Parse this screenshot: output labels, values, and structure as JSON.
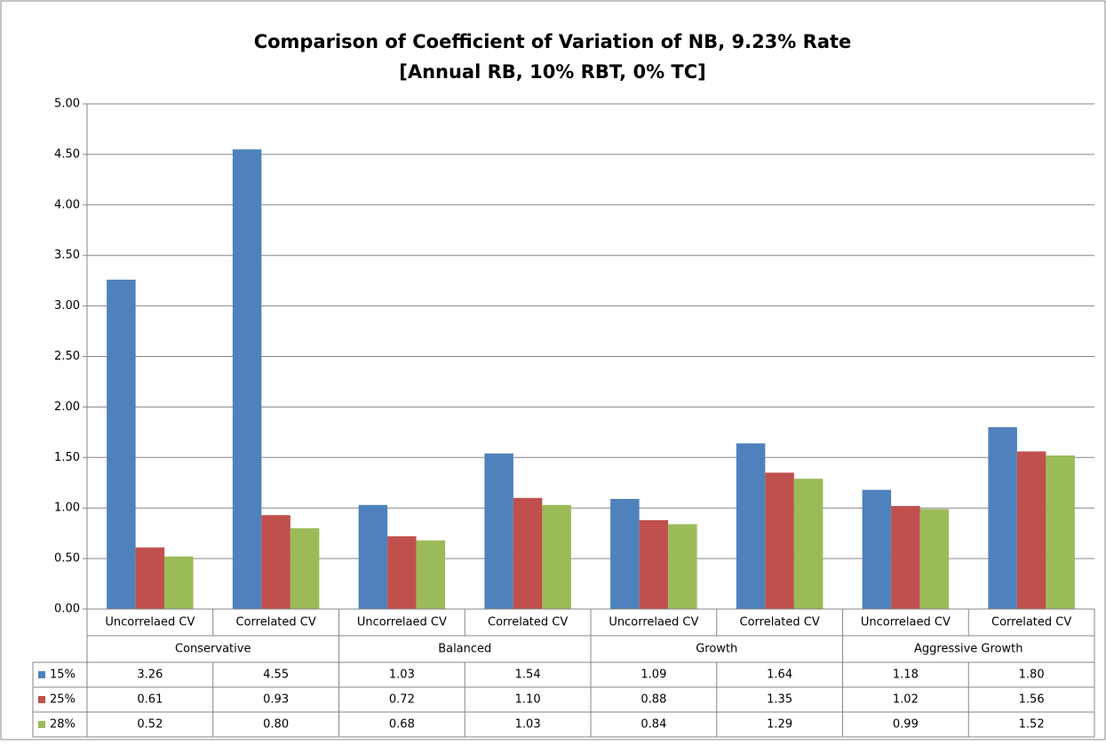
{
  "chart_data": {
    "type": "bar",
    "title": "Comparison of Coefficient of Variation of NB, 9.23% Rate",
    "subtitle": "[Annual RB, 10% RBT, 0% TC]",
    "categories": [
      "Uncorrelaed CV",
      "Correlated CV",
      "Uncorrelaed CV",
      "Correlated CV",
      "Uncorrelaed CV",
      "Correlated CV",
      "Uncorrelaed CV",
      "Correlated CV"
    ],
    "groups": [
      "Conservative",
      "Balanced",
      "Growth",
      "Aggressive Growth"
    ],
    "series": [
      {
        "name": "15%",
        "color": "#4f81bd",
        "values": [
          3.26,
          4.55,
          1.03,
          1.54,
          1.09,
          1.64,
          1.18,
          1.8
        ],
        "value_labels": [
          "3.26",
          "4.55",
          "1.03",
          "1.54",
          "1.09",
          "1.64",
          "1.18",
          "1.80"
        ]
      },
      {
        "name": "25%",
        "color": "#c0504d",
        "values": [
          0.61,
          0.93,
          0.72,
          1.1,
          0.88,
          1.35,
          1.02,
          1.56
        ],
        "value_labels": [
          "0.61",
          "0.93",
          "0.72",
          "1.10",
          "0.88",
          "1.35",
          "1.02",
          "1.56"
        ]
      },
      {
        "name": "28%",
        "color": "#9bbb59",
        "values": [
          0.52,
          0.8,
          0.68,
          1.03,
          0.84,
          1.29,
          0.99,
          1.52
        ],
        "value_labels": [
          "0.52",
          "0.80",
          "0.68",
          "1.03",
          "0.84",
          "1.29",
          "0.99",
          "1.52"
        ]
      }
    ],
    "ylim": [
      0,
      5
    ],
    "yticks": [
      {
        "value": 0,
        "label": "0.00"
      },
      {
        "value": 0.5,
        "label": "0.50"
      },
      {
        "value": 1,
        "label": "1.00"
      },
      {
        "value": 1.5,
        "label": "1.50"
      },
      {
        "value": 2,
        "label": "2.00"
      },
      {
        "value": 2.5,
        "label": "2.50"
      },
      {
        "value": 3,
        "label": "3.00"
      },
      {
        "value": 3.5,
        "label": "3.50"
      },
      {
        "value": 4,
        "label": "4.00"
      },
      {
        "value": 4.5,
        "label": "4.50"
      },
      {
        "value": 5,
        "label": "5.00"
      }
    ],
    "grid": true
  }
}
